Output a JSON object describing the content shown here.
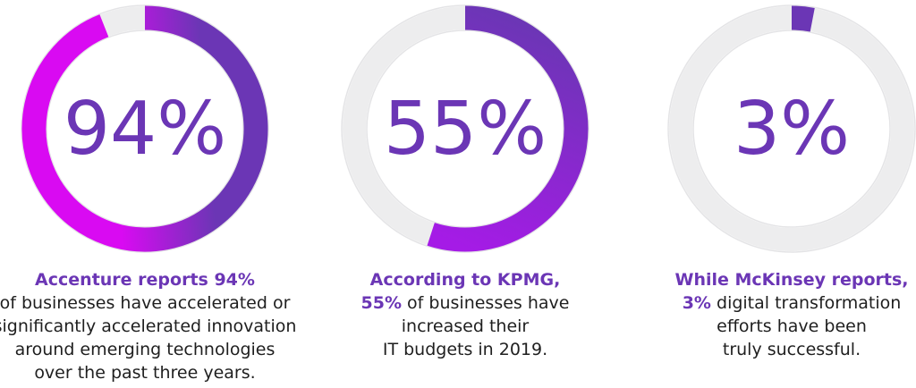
{
  "colors": {
    "track": "#ededee",
    "track_edge": "#e2e2e4",
    "purple": "#6b36b5",
    "magenta": "#d90af2"
  },
  "chart_data": {
    "type": "donut",
    "items": [
      {
        "value": 94,
        "label": "94%",
        "caption": {
          "highlight": "Accenture reports 94%",
          "lines": [
            "of businesses have accelerated or",
            "significantly accelerated innovation",
            "around emerging technologies",
            "over the past three years."
          ]
        }
      },
      {
        "value": 55,
        "label": "55%",
        "caption": {
          "highlight": "According to KPMG,",
          "highlight2": "55%",
          "line2_rest": " of businesses have",
          "lines": [
            "increased their",
            "IT budgets in 2019."
          ]
        }
      },
      {
        "value": 3,
        "label": "3%",
        "caption": {
          "highlight": "While McKinsey reports,",
          "highlight2": "3%",
          "line2_rest": " digital transformation",
          "lines": [
            "efforts have been",
            "truly successful."
          ]
        }
      }
    ]
  }
}
